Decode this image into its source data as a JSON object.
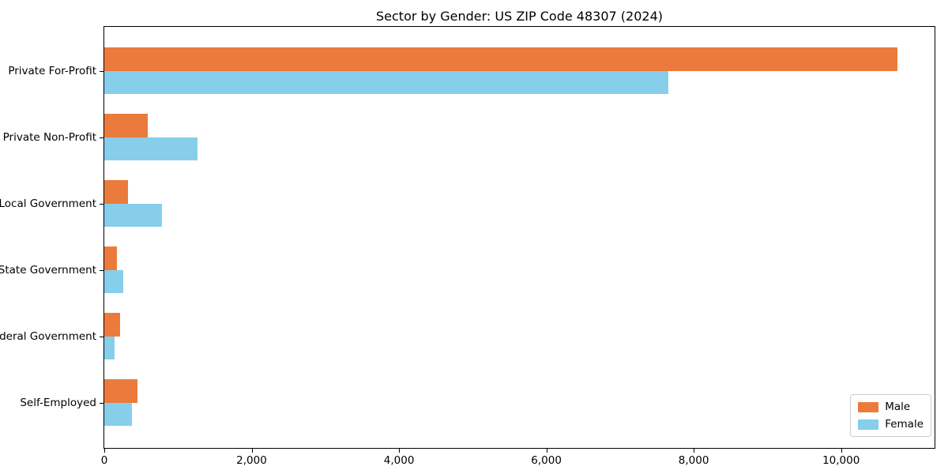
{
  "chart_data": {
    "type": "bar",
    "orientation": "horizontal",
    "title": "Sector by Gender: US ZIP Code 48307 (2024)",
    "categories": [
      "Private For-Profit",
      "Private Non-Profit",
      "Local Government",
      "State Government",
      "Federal Government",
      "Self-Employed"
    ],
    "series": [
      {
        "name": "Male",
        "color": "#eb7b3c",
        "values": [
          10760,
          590,
          320,
          170,
          210,
          450
        ]
      },
      {
        "name": "Female",
        "color": "#87ceeb",
        "values": [
          7660,
          1260,
          780,
          260,
          140,
          380
        ]
      }
    ],
    "xlabel": "",
    "ylabel": "",
    "xlim": [
      0,
      11290
    ],
    "xticks": [
      0,
      2000,
      4000,
      6000,
      8000,
      10000
    ],
    "xtick_labels": [
      "0",
      "2,000",
      "4,000",
      "6,000",
      "8,000",
      "10,000"
    ],
    "grid": false,
    "legend_position": "lower right",
    "background_color": "#ffffff",
    "spine_color": "#000000"
  }
}
